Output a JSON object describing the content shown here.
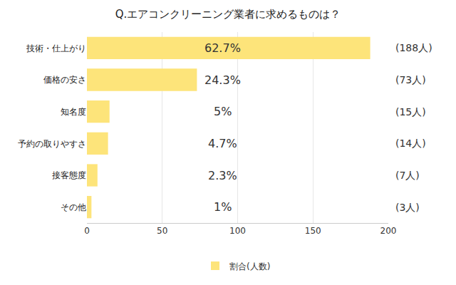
{
  "chart_data": {
    "type": "bar",
    "title": "Q.エアコンクリーニング業者に求めるものは？",
    "orientation": "horizontal",
    "categories": [
      "技術・仕上がり",
      "価格の安さ",
      "知名度",
      "予約の取りやすさ",
      "接客態度",
      "その他"
    ],
    "series": [
      {
        "name": "割合(人数)",
        "color": "#fde47a",
        "values": [
          188,
          73,
          15,
          14,
          7,
          3
        ]
      }
    ],
    "value_labels": [
      "(188人)",
      "(73人)",
      "(15人)",
      "(14人)",
      "(7人)",
      "(3人)"
    ],
    "percent_values": [
      62.7,
      24.3,
      5,
      4.7,
      2.3,
      1
    ],
    "percent_labels": [
      "62.7%",
      "24.3%",
      "5%",
      "4.7%",
      "2.3%",
      "1%"
    ],
    "xlim": [
      0,
      200
    ],
    "xticks": [
      0,
      50,
      100,
      150,
      200
    ],
    "grid": true,
    "legend": "bottom",
    "data_labels": true
  }
}
